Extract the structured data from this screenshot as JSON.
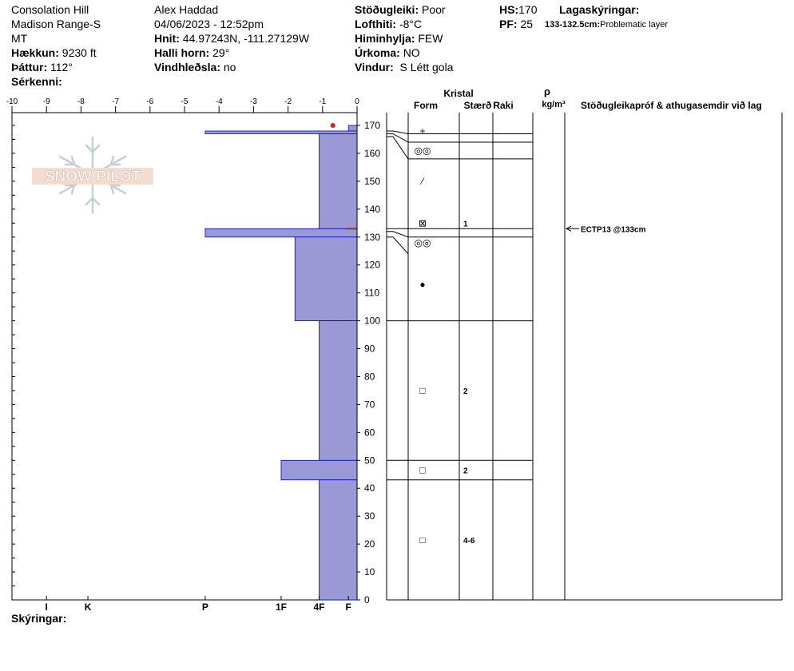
{
  "header": {
    "col1": {
      "location": "Consolation Hill",
      "range": "Madison Range-S",
      "state": "MT",
      "elevation_label": "Hækkun:",
      "elevation": "9230 ft",
      "aspect_label": "Þáttur:",
      "aspect": "112°",
      "features_label": "Sérkenni:",
      "features": ""
    },
    "col2": {
      "observer": "Alex Haddad",
      "datetime": "04/06/2023 - 12:52pm",
      "coords_label": "Hnit:",
      "coords": "44.97243N, -111.27129W",
      "slope_label": "Halli horn:",
      "slope": "29°",
      "wind_loading_label": "Vindhleðsla:",
      "wind_loading": "no"
    },
    "col3": {
      "stability_label": "Stöðugleiki:",
      "stability": "Poor",
      "air_temp_label": "Lofthiti:",
      "air_temp": "-8°C",
      "sky_label": "Himinhylja:",
      "sky": "FEW",
      "precip_label": "Úrkoma:",
      "precip": "NO",
      "wind_label": "Vindur:",
      "wind": "S Létt gola"
    },
    "col4": {
      "hs_label": "HS:",
      "hs": "170",
      "pf_label": "PF:",
      "pf": "25",
      "layer_notes_label": "Lagaskýringar:",
      "layer_note_range": "133-132.5cm:",
      "layer_note_text": "Problematic layer"
    }
  },
  "logo_text": "SNOW PILOT",
  "footer": {
    "notes_label": "Skýringar:",
    "notes": ""
  },
  "colors": {
    "hardness_fill": "#9999d6",
    "hardness_stroke": "#0000cc",
    "marker": "#cc2222",
    "temp_line": "#993333"
  },
  "chart_data": {
    "type": "snow_profile",
    "hardness_axis": {
      "tick_labels": [
        "-10",
        "-9",
        "-8",
        "-7",
        "-6",
        "-5",
        "-4",
        "-3",
        "-2",
        "-1",
        "0"
      ],
      "range": [
        -10,
        0
      ],
      "hardness_labels": [
        {
          "label": "I",
          "value": -9.0
        },
        {
          "label": "K",
          "value": -7.8
        },
        {
          "label": "P",
          "value": -4.4
        },
        {
          "label": "1F",
          "value": -2.2
        },
        {
          "label": "4F",
          "value": -1.1
        },
        {
          "label": "F",
          "value": -0.25
        }
      ]
    },
    "depth_axis": {
      "range": [
        0,
        170
      ],
      "tick_labels": [
        "0",
        "10",
        "20",
        "30",
        "40",
        "50",
        "60",
        "70",
        "80",
        "90",
        "100",
        "110",
        "120",
        "130",
        "140",
        "150",
        "160",
        "170"
      ]
    },
    "hardness_layers": [
      {
        "top": 170,
        "bottom": 168,
        "hardness": -0.25
      },
      {
        "top": 168,
        "bottom": 167,
        "hardness": -4.4
      },
      {
        "top": 167,
        "bottom": 133,
        "hardness": -1.1
      },
      {
        "top": 133,
        "bottom": 130,
        "hardness": -4.4
      },
      {
        "top": 130,
        "bottom": 100,
        "hardness": -1.8
      },
      {
        "top": 100,
        "bottom": 50,
        "hardness": -1.1
      },
      {
        "top": 50,
        "bottom": 43,
        "hardness": -2.2
      },
      {
        "top": 43,
        "bottom": 0,
        "hardness": -1.1
      }
    ],
    "temperature_marker": {
      "depth": 170,
      "temp": -0.4
    },
    "problem_layer": {
      "depth": 133
    },
    "columns": {
      "crystal_header": "Kristal",
      "form_header": "Form",
      "size_header": "Stærð",
      "wetness_header": "Raki",
      "density_symbol": "ρ",
      "density_unit": "kg/m³",
      "stability_header": "Stöðugleikapróf & athugasemdir við lag"
    },
    "layer_boundaries": [
      167,
      164,
      158,
      133,
      130,
      100,
      50,
      43
    ],
    "grain_rows": [
      {
        "depth": 168,
        "form": "+",
        "size": ""
      },
      {
        "depth": 161,
        "form": "◎◎",
        "size": ""
      },
      {
        "depth": 150,
        "form": "⁄",
        "size": ""
      },
      {
        "depth": 135,
        "form": "⊠",
        "size": "1"
      },
      {
        "depth": 128,
        "form": "◎◎",
        "size": ""
      },
      {
        "depth": 113,
        "form": "●",
        "size": ""
      },
      {
        "depth": 75,
        "form": "□",
        "size": "2"
      },
      {
        "depth": 46.5,
        "form": "□",
        "size": "2"
      },
      {
        "depth": 21.5,
        "form": "□",
        "size": "4-6"
      }
    ],
    "stability_tests": [
      {
        "depth": 133,
        "label": "ECTP13 @133cm"
      }
    ]
  }
}
